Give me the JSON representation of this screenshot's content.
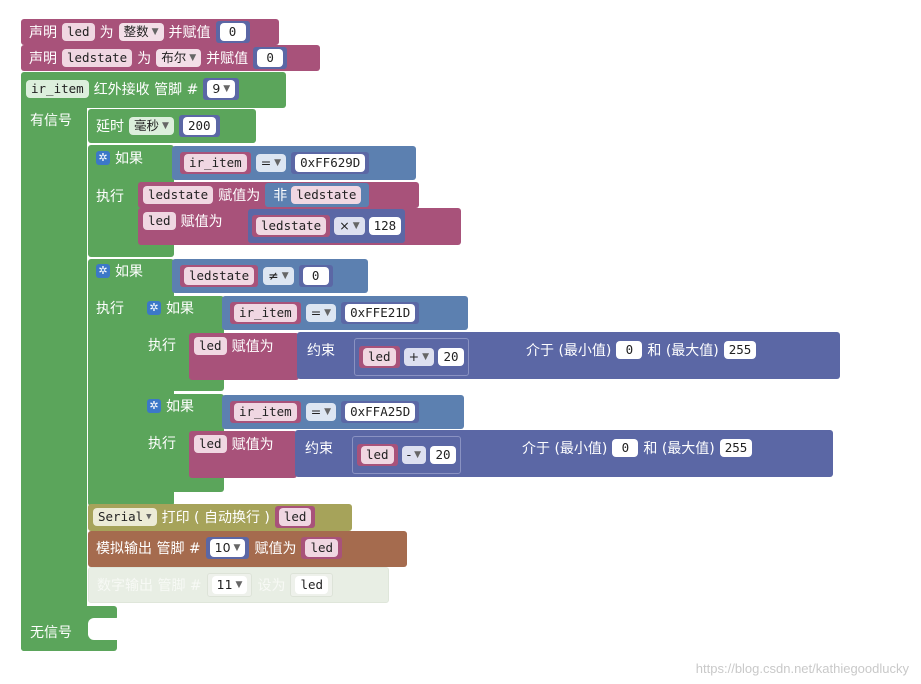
{
  "colors": {
    "var": "#a8527a",
    "logic": "#5c80b0",
    "math": "#5b67a5",
    "control": "#5ba55b",
    "serial": "#a6a35a",
    "io": "#a56b4e",
    "disabled": "#e8eee4"
  },
  "decl1": {
    "declare": "声明",
    "name": "led",
    "as": "为",
    "type": "整数",
    "assign": "并赋值",
    "value": "0"
  },
  "decl2": {
    "declare": "声明",
    "name": "ledstate",
    "as": "为",
    "type": "布尔",
    "assign": "并赋值",
    "value": "0"
  },
  "ir": {
    "var": "ir_item",
    "label": "红外接收 管脚 #",
    "pin": "9",
    "has_signal": "有信号",
    "no_signal": "无信号"
  },
  "delay": {
    "label": "延时",
    "unit": "毫秒",
    "value": "200"
  },
  "if1": {
    "if": "如果",
    "do": "执行",
    "left": "ir_item",
    "op": "=",
    "right": "0xFF629D",
    "set1": {
      "var": "ledstate",
      "assign": "赋值为",
      "not": "非",
      "value": "ledstate"
    },
    "set2": {
      "var": "led",
      "assign": "赋值为",
      "a": "ledstate",
      "op": "×",
      "b": "128"
    }
  },
  "if2": {
    "if": "如果",
    "do": "执行",
    "left": "ledstate",
    "op": "≠",
    "right": "0",
    "inner1": {
      "if": "如果",
      "do": "执行",
      "left": "ir_item",
      "op": "=",
      "right": "0xFFE21D",
      "var": "led",
      "assign": "赋值为",
      "constrain": "约束",
      "a": "led",
      "mop": "+",
      "b": "20",
      "between": "介于 (最小值)",
      "min": "0",
      "and": "和 (最大值)",
      "max": "255"
    },
    "inner2": {
      "if": "如果",
      "do": "执行",
      "left": "ir_item",
      "op": "=",
      "right": "0xFFA25D",
      "var": "led",
      "assign": "赋值为",
      "constrain": "约束",
      "a": "led",
      "mop": "-",
      "b": "20",
      "between": "介于 (最小值)",
      "min": "0",
      "and": "和 (最大值)",
      "max": "255"
    }
  },
  "serial": {
    "port": "Serial",
    "label": "打印 ( 自动换行 )",
    "value": "led"
  },
  "analog": {
    "label": "模拟输出 管脚 #",
    "pin": "10",
    "assign": "赋值为",
    "value": "led"
  },
  "digital": {
    "label": "数字输出 管脚 #",
    "pin": "11",
    "set": "设为",
    "value": "led"
  },
  "watermark": "https://blog.csdn.net/kathiegoodlucky"
}
